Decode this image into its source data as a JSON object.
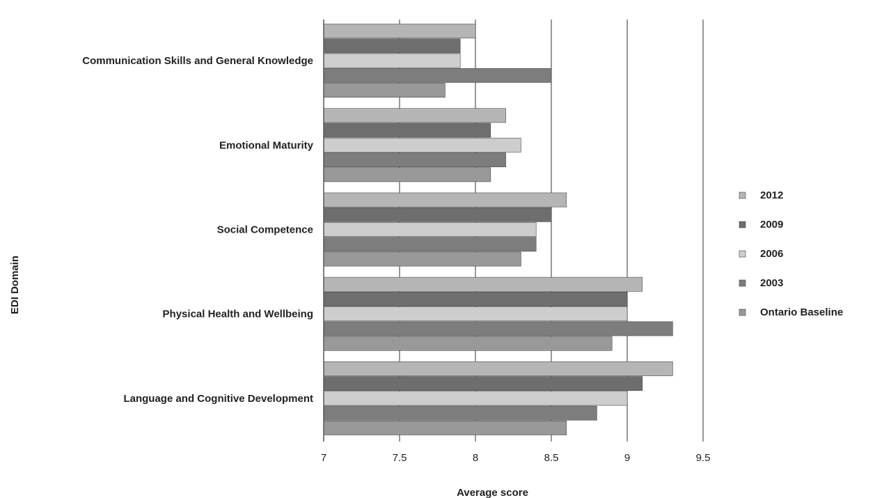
{
  "chart_data": {
    "type": "bar",
    "orientation": "horizontal",
    "categories": [
      "Communication Skills and General Knowledge",
      "Emotional Maturity",
      "Social Competence",
      "Physical Health and Wellbeing",
      "Language and Cognitive Development"
    ],
    "series": [
      {
        "name": "2012",
        "values": [
          8.0,
          8.2,
          8.6,
          9.1,
          9.3
        ],
        "color": "#b5b5b5"
      },
      {
        "name": "2009",
        "values": [
          7.9,
          8.1,
          8.5,
          9.0,
          9.1
        ],
        "color": "#6e6e6e"
      },
      {
        "name": "2006",
        "values": [
          7.9,
          8.3,
          8.4,
          9.0,
          9.0
        ],
        "color": "#cdcdcd"
      },
      {
        "name": "2003",
        "values": [
          8.5,
          8.2,
          8.4,
          9.3,
          8.8
        ],
        "color": "#7d7d7d"
      },
      {
        "name": "Ontario Baseline",
        "values": [
          7.8,
          8.1,
          8.3,
          8.9,
          8.6
        ],
        "color": "#999999"
      }
    ],
    "xlabel": "Average score",
    "ylabel": "EDI Domain",
    "xlim": [
      7,
      9.5
    ],
    "xticks": [
      "7",
      "7.5",
      "8",
      "8.5",
      "9",
      "9.5"
    ],
    "grid": true,
    "legend": "right"
  }
}
